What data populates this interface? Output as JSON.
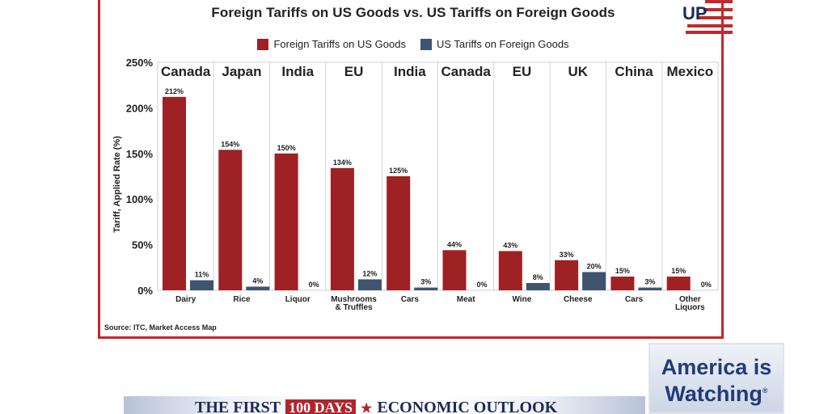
{
  "chart_data": {
    "type": "bar",
    "title": "Foreign Tariffs on US Goods vs. US Tariffs on Foreign Goods",
    "ylabel": "Tariff, Applied Rate (%)",
    "ylim": [
      0,
      250
    ],
    "yticks": [
      0,
      50,
      100,
      150,
      200,
      250
    ],
    "ytick_labels": [
      "0%",
      "50%",
      "100%",
      "150%",
      "200%",
      "250%"
    ],
    "legend_position": "top-center",
    "grid": false,
    "groups": [
      "Canada",
      "Japan",
      "India",
      "EU",
      "India",
      "Canada",
      "EU",
      "UK",
      "China",
      "Mexico"
    ],
    "categories": [
      "Dairy",
      "Rice",
      "Liquor",
      "Mushrooms & Truffles",
      "Cars",
      "Meat",
      "Wine",
      "Cheese",
      "Cars",
      "Other Liquors"
    ],
    "series": [
      {
        "name": "Foreign Tariffs on US Goods",
        "color": "#9e2124",
        "values": [
          212,
          154,
          150,
          134,
          125,
          44,
          43,
          33,
          15,
          15
        ],
        "labels": [
          "212%",
          "154%",
          "150%",
          "134%",
          "125%",
          "44%",
          "43%",
          "33%",
          "15%",
          "15%"
        ]
      },
      {
        "name": "US Tariffs on Foreign Goods",
        "color": "#3e5470",
        "values": [
          11,
          4,
          0,
          12,
          3,
          0,
          8,
          20,
          3,
          0
        ],
        "labels": [
          "11%",
          "4%",
          "0%",
          "12%",
          "3%",
          "0%",
          "8%",
          "20%",
          "3%",
          "0%"
        ]
      }
    ],
    "source": "Source: ITC, Market Access Map"
  },
  "ticker": {
    "text_a": "THE FIRST",
    "text_box": "100 DAYS",
    "text_b": "ECONOMIC OUTLOOK"
  },
  "watermark": {
    "line1": "America is",
    "line2": "Watching",
    "reg": "®"
  },
  "logo": {
    "text": "UP"
  }
}
